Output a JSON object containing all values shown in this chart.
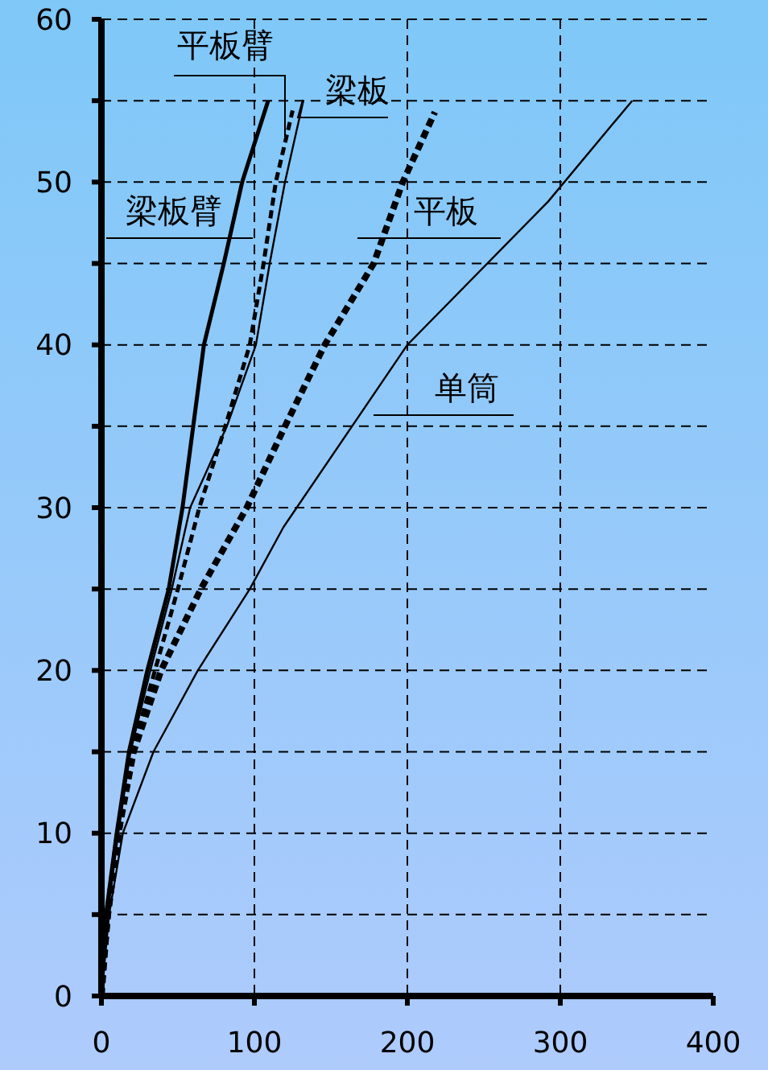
{
  "chart_data": {
    "type": "line",
    "xlim": [
      0,
      400
    ],
    "xticks": [
      0,
      100,
      200,
      300,
      400
    ],
    "ylim": [
      0,
      60
    ],
    "yticks": [
      0,
      {
        "value": 5,
        "label": null
      },
      10,
      {
        "value": 15,
        "label": null
      },
      20,
      {
        "value": 25,
        "label": null
      },
      30,
      {
        "value": 35,
        "label": null
      },
      40,
      {
        "value": 45,
        "label": null
      },
      50,
      {
        "value": 55,
        "label": null
      },
      60
    ],
    "grid": true,
    "marker": "none",
    "series": [
      {
        "name": "梁板臂",
        "color": "#000000",
        "line_style": "solid",
        "x": [
          0,
          3,
          10,
          18,
          30,
          44,
          53,
          60,
          67,
          80,
          92,
          109
        ],
        "values": [
          0,
          5,
          10,
          15,
          20,
          25,
          30,
          35,
          40,
          45,
          50,
          55
        ]
      },
      {
        "name": "平板臂",
        "color": "#000000",
        "line_style": "dashed",
        "x": [
          0,
          5,
          12,
          20,
          35,
          50,
          64,
          81,
          97,
          106,
          114,
          125
        ],
        "values": [
          0,
          5,
          10,
          15,
          20,
          25,
          30,
          35,
          40,
          45,
          50,
          54.4
        ]
      },
      {
        "name": "梁板",
        "color": "#000000",
        "line_style": "solid",
        "x": [
          0,
          4,
          11,
          19,
          32,
          46,
          58,
          82,
          101,
          110,
          120,
          132
        ],
        "values": [
          0,
          5,
          10,
          15,
          20,
          25,
          30,
          35,
          40,
          45,
          50,
          55
        ]
      },
      {
        "name": "平板",
        "color": "#000000",
        "line_style": "dashed",
        "x": [
          0,
          4,
          11,
          21,
          39,
          65,
          95,
          120,
          146,
          178,
          197,
          218
        ],
        "values": [
          0,
          5,
          10,
          15,
          20,
          25,
          30,
          35,
          40,
          45,
          50,
          54.3
        ]
      },
      {
        "name": "单筒",
        "color": "#000000",
        "line_style": "solid",
        "x": [
          0,
          5,
          14,
          34,
          63,
          97,
          119,
          200,
          292,
          347
        ],
        "values": [
          0,
          5,
          10,
          15,
          20,
          25,
          28.8,
          40,
          48.8,
          55
        ]
      }
    ]
  }
}
